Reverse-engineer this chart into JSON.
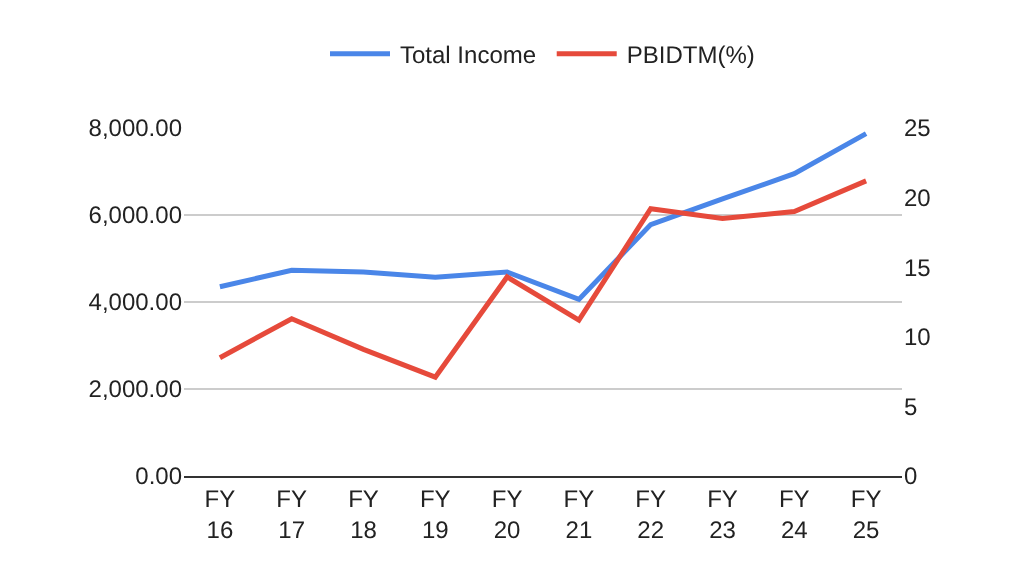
{
  "chart_data": {
    "type": "line",
    "categories": [
      "FY 16",
      "FY 17",
      "FY 18",
      "FY 19",
      "FY 20",
      "FY 21",
      "FY 22",
      "FY 23",
      "FY 24",
      "FY 25"
    ],
    "series": [
      {
        "name": "Total Income",
        "color": "#4a86e8",
        "values": [
          4350,
          4730,
          4690,
          4570,
          4690,
          4060,
          5780,
          6370,
          6950,
          7870
        ]
      },
      {
        "name": "PBIDTM(%)",
        "color": "#e64a3b",
        "axis": "y2",
        "values": [
          8.5,
          11.3,
          9.1,
          7.1,
          14.3,
          11.2,
          19.2,
          18.5,
          19.0,
          21.2
        ]
      }
    ],
    "ylim": [
      0,
      8000
    ],
    "yticks": [
      {
        "value": 0,
        "label": "0.00"
      },
      {
        "value": 2000,
        "label": "2,000.00"
      },
      {
        "value": 4000,
        "label": "4,000.00"
      },
      {
        "value": 6000,
        "label": "6,000.00"
      },
      {
        "value": 8000,
        "label": "8,000.00"
      }
    ],
    "y2lim": [
      0,
      25
    ],
    "y2ticks": [
      0,
      5,
      10,
      15,
      20,
      25
    ],
    "grid": "y",
    "legend": "top",
    "marker": "none",
    "line_style": "solid"
  }
}
